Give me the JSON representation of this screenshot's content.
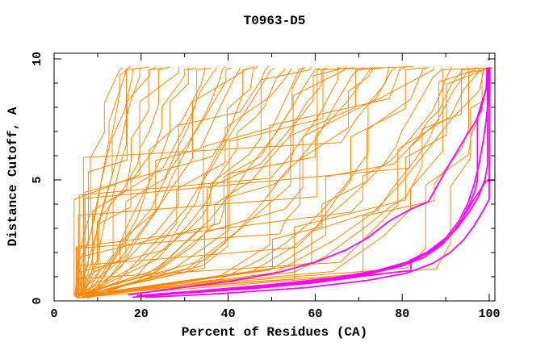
{
  "chart_data": {
    "type": "line",
    "title": "T0963-D5",
    "xlabel": "Percent of Residues (CA)",
    "ylabel": "Distance Cutoff, A",
    "xlim": [
      0,
      101.3
    ],
    "ylim": [
      0,
      10.23
    ],
    "x_major_ticks": [
      0,
      20,
      40,
      60,
      80,
      100
    ],
    "x_minor_ticks": [
      10,
      30,
      50,
      70,
      90
    ],
    "y_major_ticks": [
      0,
      5,
      10
    ],
    "y_minor_ticks": [
      1,
      2,
      3,
      4,
      6,
      7,
      8,
      9
    ],
    "grid": false,
    "legend": "none",
    "colors": {
      "models": "#ff8800",
      "highlighted": "#ff00ff",
      "frame": "#000000",
      "background": "#ffffff",
      "text": "#000000"
    },
    "curve_top_y": 9.65,
    "series_groups": [
      {
        "name": "model-curves",
        "color_key": "models",
        "stroke_width": 1,
        "curve_model": "x(y) = x0 + (xtop - x0) * (y / 9.7)^q, rendered as jagged staircase; curves start near (x0, 0.2) and end near (xtop, 9.65)",
        "curves": [
          {
            "x0": 4.6,
            "xtop": 15.5,
            "q": 1.15
          },
          {
            "x0": 5.2,
            "xtop": 16.5,
            "q": 1.0
          },
          {
            "x0": 4.8,
            "xtop": 17.2,
            "q": 1.1
          },
          {
            "x0": 6.0,
            "xtop": 18.5,
            "q": 0.95
          },
          {
            "x0": 5.5,
            "xtop": 20,
            "q": 1.05
          },
          {
            "x0": 6.5,
            "xtop": 21.5,
            "q": 0.9
          },
          {
            "x0": 4.7,
            "xtop": 23,
            "q": 0.9
          },
          {
            "x0": 5.8,
            "xtop": 25,
            "q": 0.85
          },
          {
            "x0": 6.4,
            "xtop": 27,
            "q": 0.95
          },
          {
            "x0": 4.9,
            "xtop": 29,
            "q": 0.8
          },
          {
            "x0": 7.0,
            "xtop": 31,
            "q": 0.9
          },
          {
            "x0": 5.3,
            "xtop": 33,
            "q": 0.75
          },
          {
            "x0": 6.8,
            "xtop": 35,
            "q": 0.85
          },
          {
            "x0": 5.0,
            "xtop": 37,
            "q": 0.8
          },
          {
            "x0": 7.4,
            "xtop": 39,
            "q": 0.7
          },
          {
            "x0": 5.6,
            "xtop": 41,
            "q": 0.85
          },
          {
            "x0": 6.2,
            "xtop": 43,
            "q": 0.75
          },
          {
            "x0": 4.8,
            "xtop": 45,
            "q": 0.8
          },
          {
            "x0": 7.0,
            "xtop": 47,
            "q": 0.65
          },
          {
            "x0": 5.4,
            "xtop": 49,
            "q": 0.75
          },
          {
            "x0": 6.0,
            "xtop": 51,
            "q": 0.7
          },
          {
            "x0": 6.6,
            "xtop": 53,
            "q": 0.6
          },
          {
            "x0": 5.1,
            "xtop": 55,
            "q": 0.7
          },
          {
            "x0": 7.2,
            "xtop": 57,
            "q": 0.55
          },
          {
            "x0": 5.7,
            "xtop": 59,
            "q": 0.65
          },
          {
            "x0": 6.3,
            "xtop": 61,
            "q": 0.6
          },
          {
            "x0": 4.9,
            "xtop": 63,
            "q": 0.55
          },
          {
            "x0": 6.9,
            "xtop": 65,
            "q": 0.6
          },
          {
            "x0": 5.5,
            "xtop": 67,
            "q": 0.5
          },
          {
            "x0": 7.5,
            "xtop": 69,
            "q": 0.55
          },
          {
            "x0": 5.2,
            "xtop": 71,
            "q": 0.5
          },
          {
            "x0": 6.4,
            "xtop": 73,
            "q": 0.45
          },
          {
            "x0": 5.8,
            "xtop": 75,
            "q": 0.5
          },
          {
            "x0": 7.0,
            "xtop": 77,
            "q": 0.4
          },
          {
            "x0": 5.0,
            "xtop": 79,
            "q": 0.45
          },
          {
            "x0": 6.6,
            "xtop": 81,
            "q": 0.4
          },
          {
            "x0": 5.4,
            "xtop": 83,
            "q": 0.45
          },
          {
            "x0": 7.2,
            "xtop": 85,
            "q": 0.35
          },
          {
            "x0": 5.9,
            "xtop": 87,
            "q": 0.4
          },
          {
            "x0": 6.1,
            "xtop": 89,
            "q": 0.35
          },
          {
            "x0": 5.3,
            "xtop": 91,
            "q": 0.3
          },
          {
            "x0": 6.7,
            "xtop": 93,
            "q": 0.33
          },
          {
            "x0": 5.6,
            "xtop": 95,
            "q": 0.28
          },
          {
            "x0": 7.1,
            "xtop": 96.5,
            "q": 0.3
          },
          {
            "x0": 5.1,
            "xtop": 98,
            "q": 0.25
          },
          {
            "x0": 6.3,
            "xtop": 99,
            "q": 0.28
          },
          {
            "x0": 5.8,
            "xtop": 99.6,
            "q": 0.22
          },
          {
            "x0": 6.9,
            "xtop": 100.2,
            "q": 0.3
          },
          {
            "x0": 5.2,
            "xtop": 100.4,
            "q": 0.18
          },
          {
            "x0": 6.0,
            "xtop": 99.8,
            "q": 0.06
          },
          {
            "x0": 5.5,
            "xtop": 100.3,
            "q": 0.12
          },
          {
            "x0": 6.5,
            "xtop": 100.5,
            "q": 0.35
          },
          {
            "x0": 5.0,
            "xtop": 36,
            "q": 0.6
          },
          {
            "x0": 6.2,
            "xtop": 46,
            "q": 0.5
          },
          {
            "x0": 5.8,
            "xtop": 58,
            "q": 0.45
          },
          {
            "x0": 6.6,
            "xtop": 66,
            "q": 0.42
          },
          {
            "x0": 5.4,
            "xtop": 74,
            "q": 0.33
          },
          {
            "x0": 6.0,
            "xtop": 86,
            "q": 0.3
          }
        ]
      },
      {
        "name": "highlighted-model-curves",
        "color_key": "highlighted",
        "stroke_width": 1.8,
        "curves": [
          {
            "points": [
              [
                19,
                0.2
              ],
              [
                30,
                0.35
              ],
              [
                48,
                0.6
              ],
              [
                62,
                0.85
              ],
              [
                72,
                1.1
              ],
              [
                80,
                1.45
              ],
              [
                85,
                1.8
              ],
              [
                89,
                2.3
              ],
              [
                92,
                2.9
              ],
              [
                94.5,
                3.6
              ],
              [
                96.5,
                4.2
              ],
              [
                98,
                4.6
              ],
              [
                99.2,
                4.95
              ],
              [
                101.3,
                5.0
              ]
            ]
          },
          {
            "points": [
              [
                18,
                0.15
              ],
              [
                28,
                0.3
              ],
              [
                45,
                0.5
              ],
              [
                60,
                0.75
              ],
              [
                70,
                1.0
              ],
              [
                78,
                1.18
              ],
              [
                82,
                1.25
              ],
              [
                82,
                1.7
              ],
              [
                86,
                2.0
              ],
              [
                90,
                2.5
              ],
              [
                93,
                3.1
              ],
              [
                95.5,
                3.7
              ],
              [
                97.5,
                4.3
              ],
              [
                99,
                5.0
              ],
              [
                99.6,
                5.6
              ],
              [
                99.6,
                9.65
              ]
            ]
          },
          {
            "points": [
              [
                17,
                0.25
              ],
              [
                25,
                0.45
              ],
              [
                40,
                0.8
              ],
              [
                52,
                1.2
              ],
              [
                60,
                1.6
              ],
              [
                67,
                2.1
              ],
              [
                72,
                2.6
              ],
              [
                77,
                3.3
              ],
              [
                82,
                3.8
              ],
              [
                86,
                4.1
              ],
              [
                88.5,
                4.9
              ],
              [
                91,
                5.7
              ],
              [
                93,
                6.3
              ],
              [
                95,
                6.9
              ],
              [
                96.5,
                7.3
              ],
              [
                98,
                7.85
              ],
              [
                99.3,
                8.8
              ],
              [
                99.5,
                9.65
              ]
            ]
          },
          {
            "points": [
              [
                20,
                0.2
              ],
              [
                35,
                0.4
              ],
              [
                55,
                0.7
              ],
              [
                68,
                1.0
              ],
              [
                77,
                1.35
              ],
              [
                83,
                1.7
              ],
              [
                87,
                2.1
              ],
              [
                90.5,
                2.6
              ],
              [
                93.5,
                3.3
              ],
              [
                95.5,
                4.0
              ],
              [
                96.8,
                4.6
              ],
              [
                97.3,
                5.0
              ],
              [
                97.3,
                7.6
              ],
              [
                98.3,
                8.2
              ],
              [
                99.6,
                8.9
              ],
              [
                99.6,
                9.65
              ]
            ]
          },
          {
            "points": [
              [
                21,
                0.15
              ],
              [
                38,
                0.3
              ],
              [
                58,
                0.55
              ],
              [
                72,
                0.85
              ],
              [
                81,
                1.15
              ],
              [
                87,
                1.55
              ],
              [
                91,
                2.0
              ],
              [
                94,
                2.5
              ],
              [
                96.5,
                3.1
              ],
              [
                98.5,
                3.7
              ],
              [
                100,
                4.2
              ],
              [
                100,
                9.65
              ]
            ]
          },
          {
            "points": [
              [
                19,
                0.22
              ],
              [
                32,
                0.4
              ],
              [
                50,
                0.68
              ],
              [
                64,
                0.95
              ],
              [
                74,
                1.25
              ],
              [
                81,
                1.6
              ],
              [
                86,
                2.05
              ],
              [
                90,
                2.6
              ],
              [
                93,
                3.3
              ],
              [
                95,
                4.0
              ],
              [
                96.5,
                4.8
              ],
              [
                97.6,
                5.6
              ],
              [
                98.6,
                6.6
              ],
              [
                99.3,
                7.5
              ],
              [
                99.8,
                8.4
              ],
              [
                99.8,
                9.65
              ]
            ]
          }
        ]
      }
    ]
  }
}
